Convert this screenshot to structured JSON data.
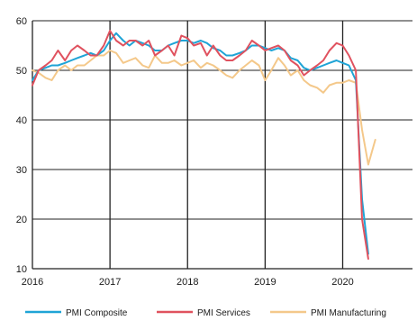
{
  "chart_data": {
    "type": "line",
    "title": "",
    "xlabel": "",
    "ylabel": "",
    "xlim": [
      2016.0,
      2020.9
    ],
    "ylim": [
      10,
      60
    ],
    "y_ticks": [
      10,
      20,
      30,
      40,
      50,
      60
    ],
    "x_ticks": [
      2016,
      2017,
      2018,
      2019,
      2020
    ],
    "x_tick_labels": [
      "2016",
      "2017",
      "2018",
      "2019",
      "2020"
    ],
    "grid": "vertical-at-year-and-horizontal-at-10",
    "legend": "bottom",
    "series": [
      {
        "name": "PMI Composite",
        "color": "#1fa4d6",
        "points": [
          [
            2016.0,
            48
          ],
          [
            2016.08,
            50
          ],
          [
            2016.17,
            50.5
          ],
          [
            2016.25,
            51
          ],
          [
            2016.33,
            51
          ],
          [
            2016.42,
            51.5
          ],
          [
            2016.5,
            52
          ],
          [
            2016.58,
            52.5
          ],
          [
            2016.67,
            53
          ],
          [
            2016.75,
            53.5
          ],
          [
            2016.83,
            53
          ],
          [
            2016.92,
            54
          ],
          [
            2017.0,
            56
          ],
          [
            2017.08,
            57.5
          ],
          [
            2017.17,
            56
          ],
          [
            2017.25,
            55
          ],
          [
            2017.33,
            56
          ],
          [
            2017.42,
            55.5
          ],
          [
            2017.5,
            55
          ],
          [
            2017.58,
            54
          ],
          [
            2017.67,
            54
          ],
          [
            2017.75,
            55
          ],
          [
            2017.83,
            55.5
          ],
          [
            2017.92,
            56
          ],
          [
            2018.0,
            56
          ],
          [
            2018.08,
            55.5
          ],
          [
            2018.17,
            56
          ],
          [
            2018.25,
            55.5
          ],
          [
            2018.33,
            54.5
          ],
          [
            2018.42,
            54
          ],
          [
            2018.5,
            53
          ],
          [
            2018.58,
            53
          ],
          [
            2018.67,
            53.5
          ],
          [
            2018.75,
            54
          ],
          [
            2018.83,
            55
          ],
          [
            2018.92,
            55
          ],
          [
            2019.0,
            54.5
          ],
          [
            2019.08,
            54
          ],
          [
            2019.17,
            54.5
          ],
          [
            2019.25,
            54
          ],
          [
            2019.33,
            52.5
          ],
          [
            2019.42,
            52
          ],
          [
            2019.5,
            50.5
          ],
          [
            2019.58,
            50
          ],
          [
            2019.67,
            50.5
          ],
          [
            2019.75,
            51
          ],
          [
            2019.83,
            51.5
          ],
          [
            2019.92,
            52
          ],
          [
            2020.0,
            51.5
          ],
          [
            2020.08,
            51
          ],
          [
            2020.17,
            48
          ],
          [
            2020.25,
            24
          ],
          [
            2020.33,
            13
          ]
        ]
      },
      {
        "name": "PMI Services",
        "color": "#e0525f",
        "points": [
          [
            2016.0,
            47
          ],
          [
            2016.08,
            50
          ],
          [
            2016.17,
            51
          ],
          [
            2016.25,
            52
          ],
          [
            2016.33,
            54
          ],
          [
            2016.42,
            52
          ],
          [
            2016.5,
            54
          ],
          [
            2016.58,
            55
          ],
          [
            2016.67,
            54
          ],
          [
            2016.75,
            53
          ],
          [
            2016.83,
            53
          ],
          [
            2016.92,
            55
          ],
          [
            2017.0,
            58
          ],
          [
            2017.08,
            56
          ],
          [
            2017.17,
            55
          ],
          [
            2017.25,
            56
          ],
          [
            2017.33,
            56
          ],
          [
            2017.42,
            55
          ],
          [
            2017.5,
            56
          ],
          [
            2017.58,
            53
          ],
          [
            2017.67,
            54
          ],
          [
            2017.75,
            55
          ],
          [
            2017.83,
            53
          ],
          [
            2017.92,
            57
          ],
          [
            2018.0,
            56.5
          ],
          [
            2018.08,
            55
          ],
          [
            2018.17,
            55.5
          ],
          [
            2018.25,
            53
          ],
          [
            2018.33,
            55
          ],
          [
            2018.42,
            53
          ],
          [
            2018.5,
            52
          ],
          [
            2018.58,
            52
          ],
          [
            2018.67,
            53
          ],
          [
            2018.75,
            54
          ],
          [
            2018.83,
            56
          ],
          [
            2018.92,
            55
          ],
          [
            2019.0,
            54
          ],
          [
            2019.08,
            54.5
          ],
          [
            2019.17,
            55
          ],
          [
            2019.25,
            54
          ],
          [
            2019.33,
            52
          ],
          [
            2019.42,
            51
          ],
          [
            2019.5,
            49
          ],
          [
            2019.58,
            50
          ],
          [
            2019.67,
            51
          ],
          [
            2019.75,
            52
          ],
          [
            2019.83,
            54
          ],
          [
            2019.92,
            55.5
          ],
          [
            2020.0,
            55
          ],
          [
            2020.08,
            53
          ],
          [
            2020.17,
            50
          ],
          [
            2020.25,
            20
          ],
          [
            2020.33,
            12
          ]
        ]
      },
      {
        "name": "PMI Manufacturing",
        "color": "#f4c88a",
        "points": [
          [
            2016.0,
            50
          ],
          [
            2016.08,
            49.5
          ],
          [
            2016.17,
            48.5
          ],
          [
            2016.25,
            48
          ],
          [
            2016.33,
            50
          ],
          [
            2016.42,
            51
          ],
          [
            2016.5,
            50
          ],
          [
            2016.58,
            51
          ],
          [
            2016.67,
            51
          ],
          [
            2016.75,
            52
          ],
          [
            2016.83,
            53
          ],
          [
            2016.92,
            53
          ],
          [
            2017.0,
            54
          ],
          [
            2017.08,
            53.5
          ],
          [
            2017.17,
            51.5
          ],
          [
            2017.25,
            52
          ],
          [
            2017.33,
            52.5
          ],
          [
            2017.42,
            51
          ],
          [
            2017.5,
            50.5
          ],
          [
            2017.58,
            53
          ],
          [
            2017.67,
            51.5
          ],
          [
            2017.75,
            51.5
          ],
          [
            2017.83,
            52
          ],
          [
            2017.92,
            51
          ],
          [
            2018.0,
            51.5
          ],
          [
            2018.08,
            52
          ],
          [
            2018.17,
            50.5
          ],
          [
            2018.25,
            51.5
          ],
          [
            2018.33,
            51
          ],
          [
            2018.42,
            50
          ],
          [
            2018.5,
            49
          ],
          [
            2018.58,
            48.5
          ],
          [
            2018.67,
            50
          ],
          [
            2018.75,
            51
          ],
          [
            2018.83,
            52
          ],
          [
            2018.92,
            51
          ],
          [
            2019.0,
            48
          ],
          [
            2019.08,
            50
          ],
          [
            2019.17,
            52.5
          ],
          [
            2019.25,
            51
          ],
          [
            2019.33,
            49
          ],
          [
            2019.42,
            50
          ],
          [
            2019.5,
            48
          ],
          [
            2019.58,
            47
          ],
          [
            2019.67,
            46.5
          ],
          [
            2019.75,
            45.5
          ],
          [
            2019.83,
            47
          ],
          [
            2019.92,
            47.5
          ],
          [
            2020.0,
            47.5
          ],
          [
            2020.08,
            48
          ],
          [
            2020.17,
            47.5
          ],
          [
            2020.25,
            38
          ],
          [
            2020.33,
            31
          ],
          [
            2020.42,
            36
          ]
        ]
      }
    ]
  }
}
